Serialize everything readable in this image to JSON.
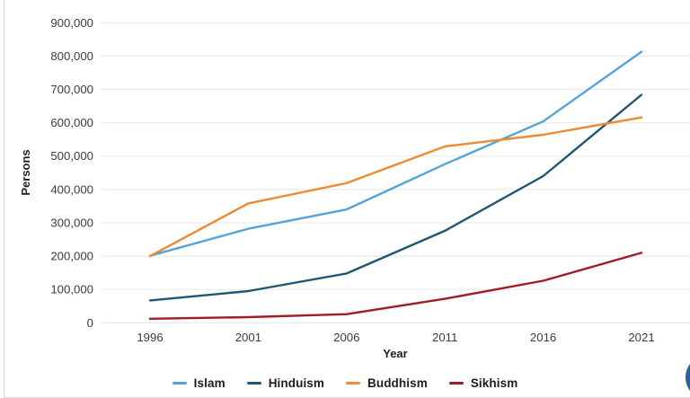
{
  "chart_data": {
    "type": "line",
    "title": "",
    "x": [
      1996,
      2001,
      2006,
      2011,
      2016,
      2021
    ],
    "x_tick_labels": [
      "1996",
      "2001",
      "2006",
      "2011",
      "2016",
      "2021"
    ],
    "xlabel": "Year",
    "ylabel": "Persons",
    "ylim": [
      0,
      900000
    ],
    "y_tick_interval": 100000,
    "y_tick_labels": [
      "0",
      "100,000",
      "200,000",
      "300,000",
      "400,000",
      "500,000",
      "600,000",
      "700,000",
      "800,000",
      "900,000"
    ],
    "grid": true,
    "legend_position": "bottom",
    "series": [
      {
        "name": "Islam",
        "color": "#55a3d8",
        "values": [
          201000,
          282000,
          340000,
          476000,
          604000,
          813000
        ]
      },
      {
        "name": "Hinduism",
        "color": "#1f5673",
        "values": [
          67000,
          95000,
          148000,
          276000,
          440000,
          684000
        ]
      },
      {
        "name": "Buddhism",
        "color": "#ed8a33",
        "values": [
          200000,
          358000,
          419000,
          529000,
          564000,
          616000
        ]
      },
      {
        "name": "Sikhism",
        "color": "#a01c26",
        "values": [
          12000,
          17000,
          26000,
          72000,
          126000,
          210000
        ]
      }
    ]
  },
  "colors": {
    "gridline": "#e8e8e8",
    "zero_line": "#dde4ec",
    "tick_label": "#3c3c3c",
    "axis_title": "#1f1f1f",
    "legend_text": "#1d1d1d",
    "pane_border": "#d9d9d9",
    "fab_background": "#2e6095"
  }
}
